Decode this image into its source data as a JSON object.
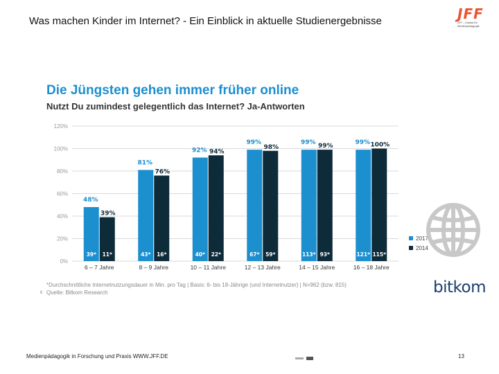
{
  "slide": {
    "title_main": "Was machen Kinder im Internet?",
    "title_rest": " - Ein Einblick in aktuelle Studienergebnisse",
    "logo_text": "JFF",
    "logo_sub_1": "JFF – Institut für",
    "logo_sub_2": "Medienpädagogik",
    "footer": "Medienpädagogik in Forschung und Praxis WWW.JFF.DE",
    "page_number": "13",
    "page_marker": "6"
  },
  "chart_data": {
    "type": "bar",
    "title": "Die Jüngsten gehen immer früher online",
    "subtitle": "Nutzt Du zumindest gelegentlich das Internet? Ja-Antworten",
    "categories": [
      "6 – 7 Jahre",
      "8 – 9 Jahre",
      "10 – 11 Jahre",
      "12 – 13 Jahre",
      "14 – 15 Jahre",
      "16 – 18 Jahre"
    ],
    "series": [
      {
        "name": "2017",
        "values": [
          48,
          81,
          92,
          99,
          99,
          99
        ],
        "labels": [
          "48%",
          "81%",
          "92%",
          "99%",
          "99%",
          "99%"
        ],
        "minutes": [
          "39*",
          "43*",
          "40*",
          "67*",
          "113*",
          "121*"
        ],
        "color": "#1c8fcf"
      },
      {
        "name": "2014",
        "values": [
          39,
          76,
          94,
          98,
          99,
          100
        ],
        "labels": [
          "39%",
          "76%",
          "94%",
          "98%",
          "99%",
          "100%"
        ],
        "minutes": [
          "11*",
          "16*",
          "22*",
          "59*",
          "93*",
          "115*"
        ],
        "color": "#0e2b3a"
      }
    ],
    "yticks": [
      "0%",
      "20%",
      "40%",
      "60%",
      "80%",
      "100%",
      "120%"
    ],
    "ylim": [
      0,
      120
    ],
    "footnote": "*Durchschnittliche Internetnutzungsdauer in Min. pro Tag | Basis: 6- bis 18-Jährige (und Internetnutzer) | N=962 (bzw. 815)",
    "source": "Quelle: Bitkom Research",
    "brand": "bitkom"
  }
}
